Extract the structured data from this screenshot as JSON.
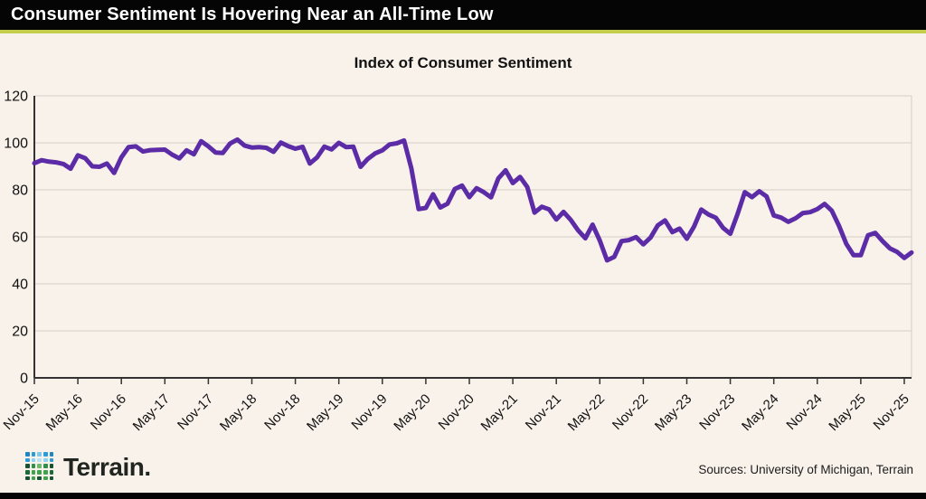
{
  "header": {
    "title": "Consumer Sentiment Is Hovering Near an All-Time Low"
  },
  "chart_data": {
    "type": "line",
    "title": "Index of Consumer Sentiment",
    "series_name": "Index of Consumer Sentiment",
    "frequency": "monthly",
    "x_start": "Nov-2015",
    "x_end": "Dec-2025",
    "ylim": [
      0,
      120
    ],
    "y_ticks": [
      0,
      20,
      40,
      60,
      80,
      100,
      120
    ],
    "grid": true,
    "x_tick_every_n_months": 6,
    "x_tick_labels": [
      "Nov-15",
      "May-16",
      "Nov-16",
      "May-17",
      "Nov-17",
      "May-18",
      "Nov-18",
      "May-19",
      "Nov-19",
      "May-20",
      "Nov-20",
      "May-21",
      "Nov-21",
      "May-22",
      "Nov-22",
      "May-23",
      "Nov-23",
      "May-24",
      "Nov-24",
      "May-25",
      "Nov-25"
    ],
    "values": [
      91.3,
      92.6,
      92.0,
      91.7,
      91.0,
      89.0,
      94.7,
      93.5,
      90.0,
      89.8,
      91.2,
      87.2,
      93.8,
      98.2,
      98.5,
      96.3,
      96.9,
      97.0,
      97.1,
      95.0,
      93.4,
      96.8,
      95.1,
      100.7,
      98.5,
      95.9,
      95.7,
      99.7,
      101.4,
      98.8,
      98.0,
      98.2,
      97.9,
      96.2,
      100.1,
      98.6,
      97.5,
      98.3,
      91.2,
      93.8,
      98.4,
      97.2,
      100.0,
      98.2,
      98.4,
      89.8,
      93.2,
      95.5,
      96.8,
      99.3,
      99.8,
      101.0,
      89.1,
      71.8,
      72.3,
      78.1,
      72.5,
      74.1,
      80.4,
      81.8,
      76.9,
      80.7,
      79.0,
      76.8,
      84.9,
      88.3,
      82.9,
      85.5,
      81.2,
      70.3,
      72.8,
      71.7,
      67.4,
      70.6,
      67.2,
      62.8,
      59.4,
      65.2,
      58.4,
      50.0,
      51.5,
      58.2,
      58.6,
      59.9,
      56.8,
      59.7,
      64.9,
      67.0,
      62.0,
      63.5,
      59.2,
      64.4,
      71.6,
      69.5,
      68.1,
      63.8,
      61.3,
      69.7,
      79.0,
      76.9,
      79.4,
      77.2,
      69.1,
      68.2,
      66.4,
      67.9,
      70.1,
      70.5,
      71.8,
      74.0,
      71.1,
      64.7,
      57.0,
      52.2,
      52.2,
      60.7,
      61.7,
      58.2,
      55.1,
      53.6,
      51.0,
      53.3
    ],
    "line_color": "#5c2ba6"
  },
  "colors": {
    "background": "#f9f2eb",
    "header_bg": "#050505",
    "accent": "#c5ce4c",
    "grid": "#dcd5ce",
    "axis": "#333333",
    "line": "#5c2ba6"
  },
  "footer": {
    "brand": "Terrain.",
    "sources": "Sources: University of Michigan, Terrain",
    "logo_colors": [
      [
        "#1f86c4",
        "#2d9bd8",
        "#7ec7ef",
        "#2d9bd8",
        "#1f86c4"
      ],
      [
        "#2d9bd8",
        "#8ed1f4",
        "#b7e3f9",
        "#8ed1f4",
        "#2d9bd8"
      ],
      [
        "#145230",
        "#2f8f46",
        "#6db96f",
        "#2f8f46",
        "#145230"
      ],
      [
        "#1a6b38",
        "#3fa34d",
        "#3fa34d",
        "#3fa34d",
        "#1a6b38"
      ],
      [
        "#145230",
        "#3fa34d",
        "#145230",
        "#3fa34d",
        "#145230"
      ]
    ]
  }
}
